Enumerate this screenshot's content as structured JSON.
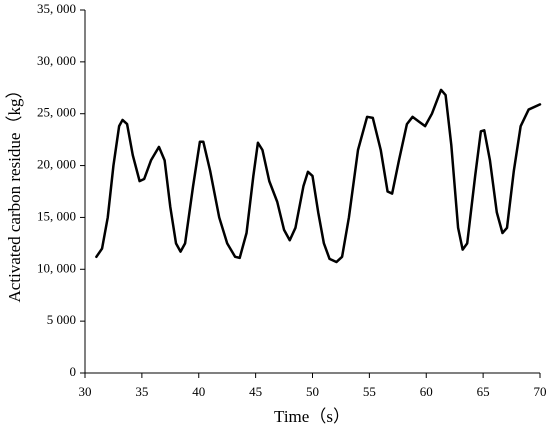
{
  "chart_data": {
    "type": "line",
    "x_label": "Time（s）",
    "y_label": "Activated carbon residue（kg）",
    "x": [
      31,
      31.5,
      32,
      32.5,
      33,
      33.3,
      33.7,
      34.2,
      34.8,
      35.2,
      35.8,
      36.5,
      37,
      37.5,
      38,
      38.4,
      38.8,
      39.5,
      40.1,
      40.4,
      41,
      41.8,
      42.5,
      43.2,
      43.6,
      44.2,
      44.8,
      45.2,
      45.6,
      46.2,
      46.9,
      47.5,
      48,
      48.5,
      49.2,
      49.6,
      50,
      50.5,
      51,
      51.5,
      52.1,
      52.6,
      53.2,
      54,
      54.8,
      55.3,
      56,
      56.6,
      57,
      57.6,
      58.3,
      58.8,
      59.4,
      59.9,
      60.5,
      61.3,
      61.7,
      62.2,
      62.8,
      63.2,
      63.6,
      64.3,
      64.8,
      65.1,
      65.6,
      66.2,
      66.7,
      67.1,
      67.7,
      68.3,
      69,
      70
    ],
    "series": [
      {
        "name": "Activated carbon residue",
        "color": "#000000",
        "values": [
          11200,
          12000,
          15000,
          20000,
          23800,
          24400,
          24000,
          21000,
          18500,
          18700,
          20500,
          21800,
          20500,
          16000,
          12500,
          11700,
          12500,
          18000,
          22300,
          22300,
          19500,
          15000,
          12500,
          11200,
          11100,
          13500,
          19000,
          22200,
          21500,
          18500,
          16500,
          13800,
          12800,
          14000,
          18000,
          19400,
          19000,
          15500,
          12500,
          11000,
          10700,
          11200,
          15000,
          21500,
          24700,
          24600,
          21500,
          17500,
          17300,
          20500,
          24000,
          24700,
          24200,
          23800,
          25000,
          27300,
          26800,
          22000,
          14000,
          11900,
          12500,
          19000,
          23300,
          23400,
          20500,
          15500,
          13500,
          14000,
          19500,
          23800,
          25400,
          25900
        ]
      }
    ],
    "xlim": [
      30,
      70
    ],
    "xticks": [
      30,
      35,
      40,
      45,
      50,
      55,
      60,
      65,
      70
    ],
    "ylim": [
      0,
      35000
    ],
    "yticks": [
      0,
      {
        "value": 5000,
        "label": "5 000"
      },
      {
        "value": 10000,
        "label": "10, 000"
      },
      {
        "value": 15000,
        "label": "15, 000"
      },
      {
        "value": 20000,
        "label": "20, 000"
      },
      {
        "value": 25000,
        "label": "25, 000"
      },
      {
        "value": 30000,
        "label": "30, 000"
      },
      {
        "value": 35000,
        "label": "35, 000"
      }
    ]
  }
}
